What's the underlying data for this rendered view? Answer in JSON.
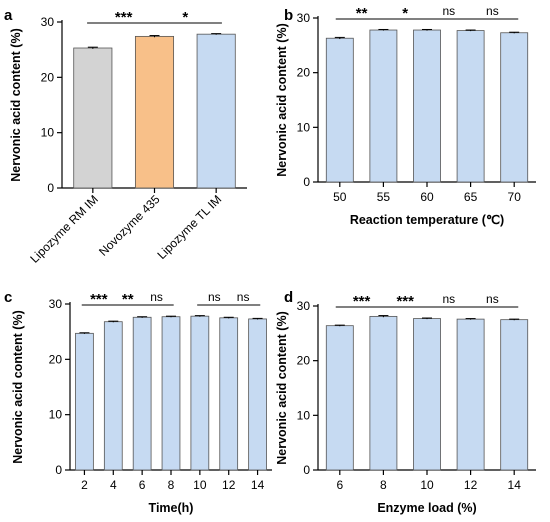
{
  "chart_data": [
    {
      "panel": "a",
      "type": "bar",
      "ylabel": "Nervonic acid content (%)",
      "xlabel": "",
      "ylim": [
        0,
        30
      ],
      "yticks": [
        0,
        10,
        20,
        30
      ],
      "categories": [
        "Lipozyme RM IM",
        "Novozyme 435",
        "Lipozyme TL IM"
      ],
      "values": [
        25.3,
        27.4,
        27.8
      ],
      "errors": [
        0.15,
        0.15,
        0.1
      ],
      "colors": [
        "#d3d3d3",
        "#f8c089",
        "#c6daf2"
      ],
      "significance": [
        {
          "from": 0,
          "to": 1,
          "label": "***"
        },
        {
          "from": 1,
          "to": 2,
          "label": "*"
        }
      ]
    },
    {
      "panel": "b",
      "type": "bar",
      "ylabel": "Nervonic acid content (%)",
      "xlabel": "Reaction temperature (℃)",
      "ylim": [
        0,
        30
      ],
      "yticks": [
        0,
        10,
        20,
        30
      ],
      "categories": [
        "50",
        "55",
        "60",
        "65",
        "70"
      ],
      "values": [
        26.3,
        27.8,
        27.8,
        27.7,
        27.3
      ],
      "errors": [
        0.15,
        0.1,
        0.1,
        0.1,
        0.1
      ],
      "colors": [
        "#c6daf2"
      ],
      "significance": [
        {
          "from": 0,
          "to": 1,
          "label": "**"
        },
        {
          "from": 1,
          "to": 2,
          "label": "*"
        },
        {
          "from": 2,
          "to": 3,
          "label": "ns"
        },
        {
          "from": 3,
          "to": 4,
          "label": "ns"
        }
      ]
    },
    {
      "panel": "c",
      "type": "bar",
      "ylabel": "Nervonic acid content (%)",
      "xlabel": "Time(h)",
      "ylim": [
        0,
        30
      ],
      "yticks": [
        0,
        10,
        20,
        30
      ],
      "categories": [
        "2",
        "4",
        "6",
        "8",
        "10",
        "12",
        "14"
      ],
      "values": [
        24.7,
        26.8,
        27.6,
        27.7,
        27.8,
        27.5,
        27.3
      ],
      "errors": [
        0.1,
        0.1,
        0.1,
        0.1,
        0.1,
        0.1,
        0.1
      ],
      "colors": [
        "#c6daf2"
      ],
      "significance": [
        {
          "from": 0,
          "to": 1,
          "label": "***"
        },
        {
          "from": 1,
          "to": 2,
          "label": "**"
        },
        {
          "from": 2,
          "to": 3,
          "label": "ns"
        },
        {
          "from": 4,
          "to": 5,
          "label": "ns"
        },
        {
          "from": 5,
          "to": 6,
          "label": "ns"
        }
      ]
    },
    {
      "panel": "d",
      "type": "bar",
      "ylabel": "Nervonic acid content (%)",
      "xlabel": "Enzyme load (%)",
      "ylim": [
        0,
        30
      ],
      "yticks": [
        0,
        10,
        20,
        30
      ],
      "categories": [
        "6",
        "8",
        "10",
        "12",
        "14"
      ],
      "values": [
        26.4,
        28.1,
        27.7,
        27.6,
        27.5
      ],
      "errors": [
        0.1,
        0.15,
        0.1,
        0.1,
        0.1
      ],
      "colors": [
        "#c6daf2"
      ],
      "significance": [
        {
          "from": 0,
          "to": 1,
          "label": "***"
        },
        {
          "from": 1,
          "to": 2,
          "label": "***"
        },
        {
          "from": 2,
          "to": 3,
          "label": "ns"
        },
        {
          "from": 3,
          "to": 4,
          "label": "ns"
        }
      ]
    }
  ]
}
